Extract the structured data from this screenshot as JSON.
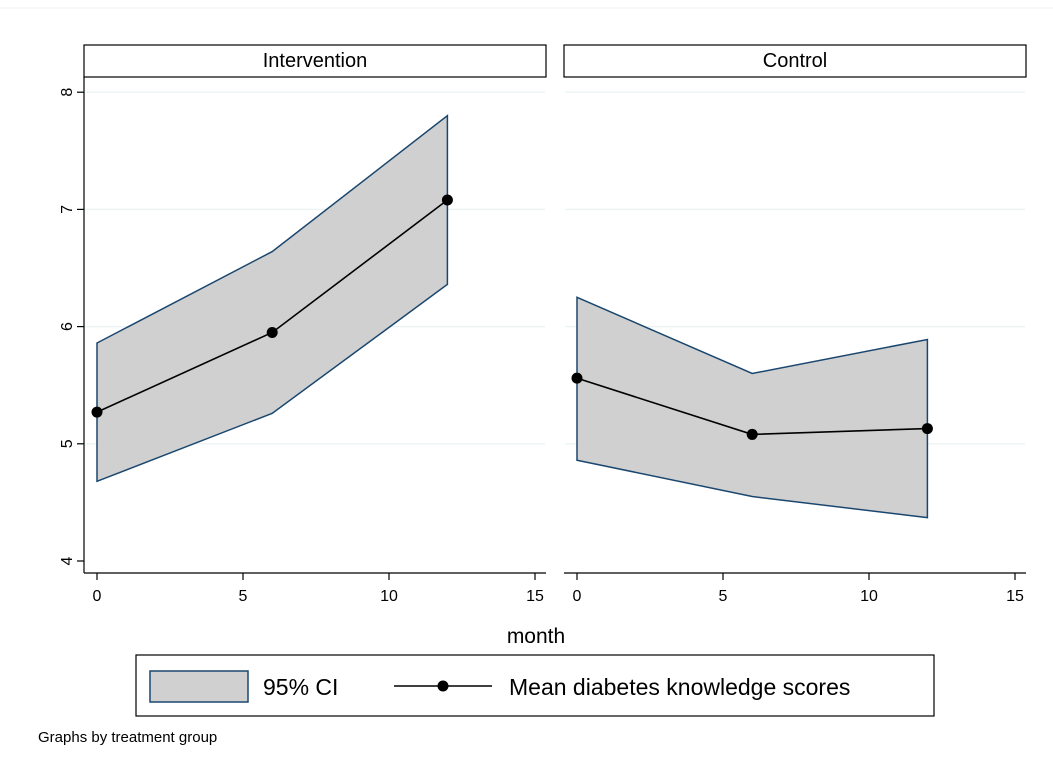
{
  "chart_data": {
    "type": "line",
    "by_note": "Graphs by treatment group",
    "xlabel": "month",
    "ylabel": "",
    "xlim": [
      0,
      15
    ],
    "ylim": [
      4,
      8
    ],
    "xticks": [
      0,
      5,
      10,
      15
    ],
    "yticks": [
      4,
      5,
      6,
      7,
      8
    ],
    "grid": true,
    "legend_position": "bottom",
    "legend": {
      "ci_label": "95% CI",
      "mean_label": "Mean diabetes knowledge scores"
    },
    "colors": {
      "ci_fill": "#d0d0d0",
      "ci_outline": "#1a476f",
      "mean_line": "#000000",
      "grid": "#eaf2f3"
    },
    "panels": [
      {
        "title": "Intervention",
        "x": [
          0,
          6,
          12
        ],
        "mean": [
          5.27,
          5.95,
          7.08
        ],
        "ci_lower": [
          4.68,
          5.26,
          6.36
        ],
        "ci_upper": [
          5.86,
          6.64,
          7.8
        ]
      },
      {
        "title": "Control",
        "x": [
          0,
          6,
          12
        ],
        "mean": [
          5.56,
          5.08,
          5.13
        ],
        "ci_lower": [
          4.86,
          4.55,
          4.37
        ],
        "ci_upper": [
          6.25,
          5.6,
          5.89
        ]
      }
    ]
  }
}
